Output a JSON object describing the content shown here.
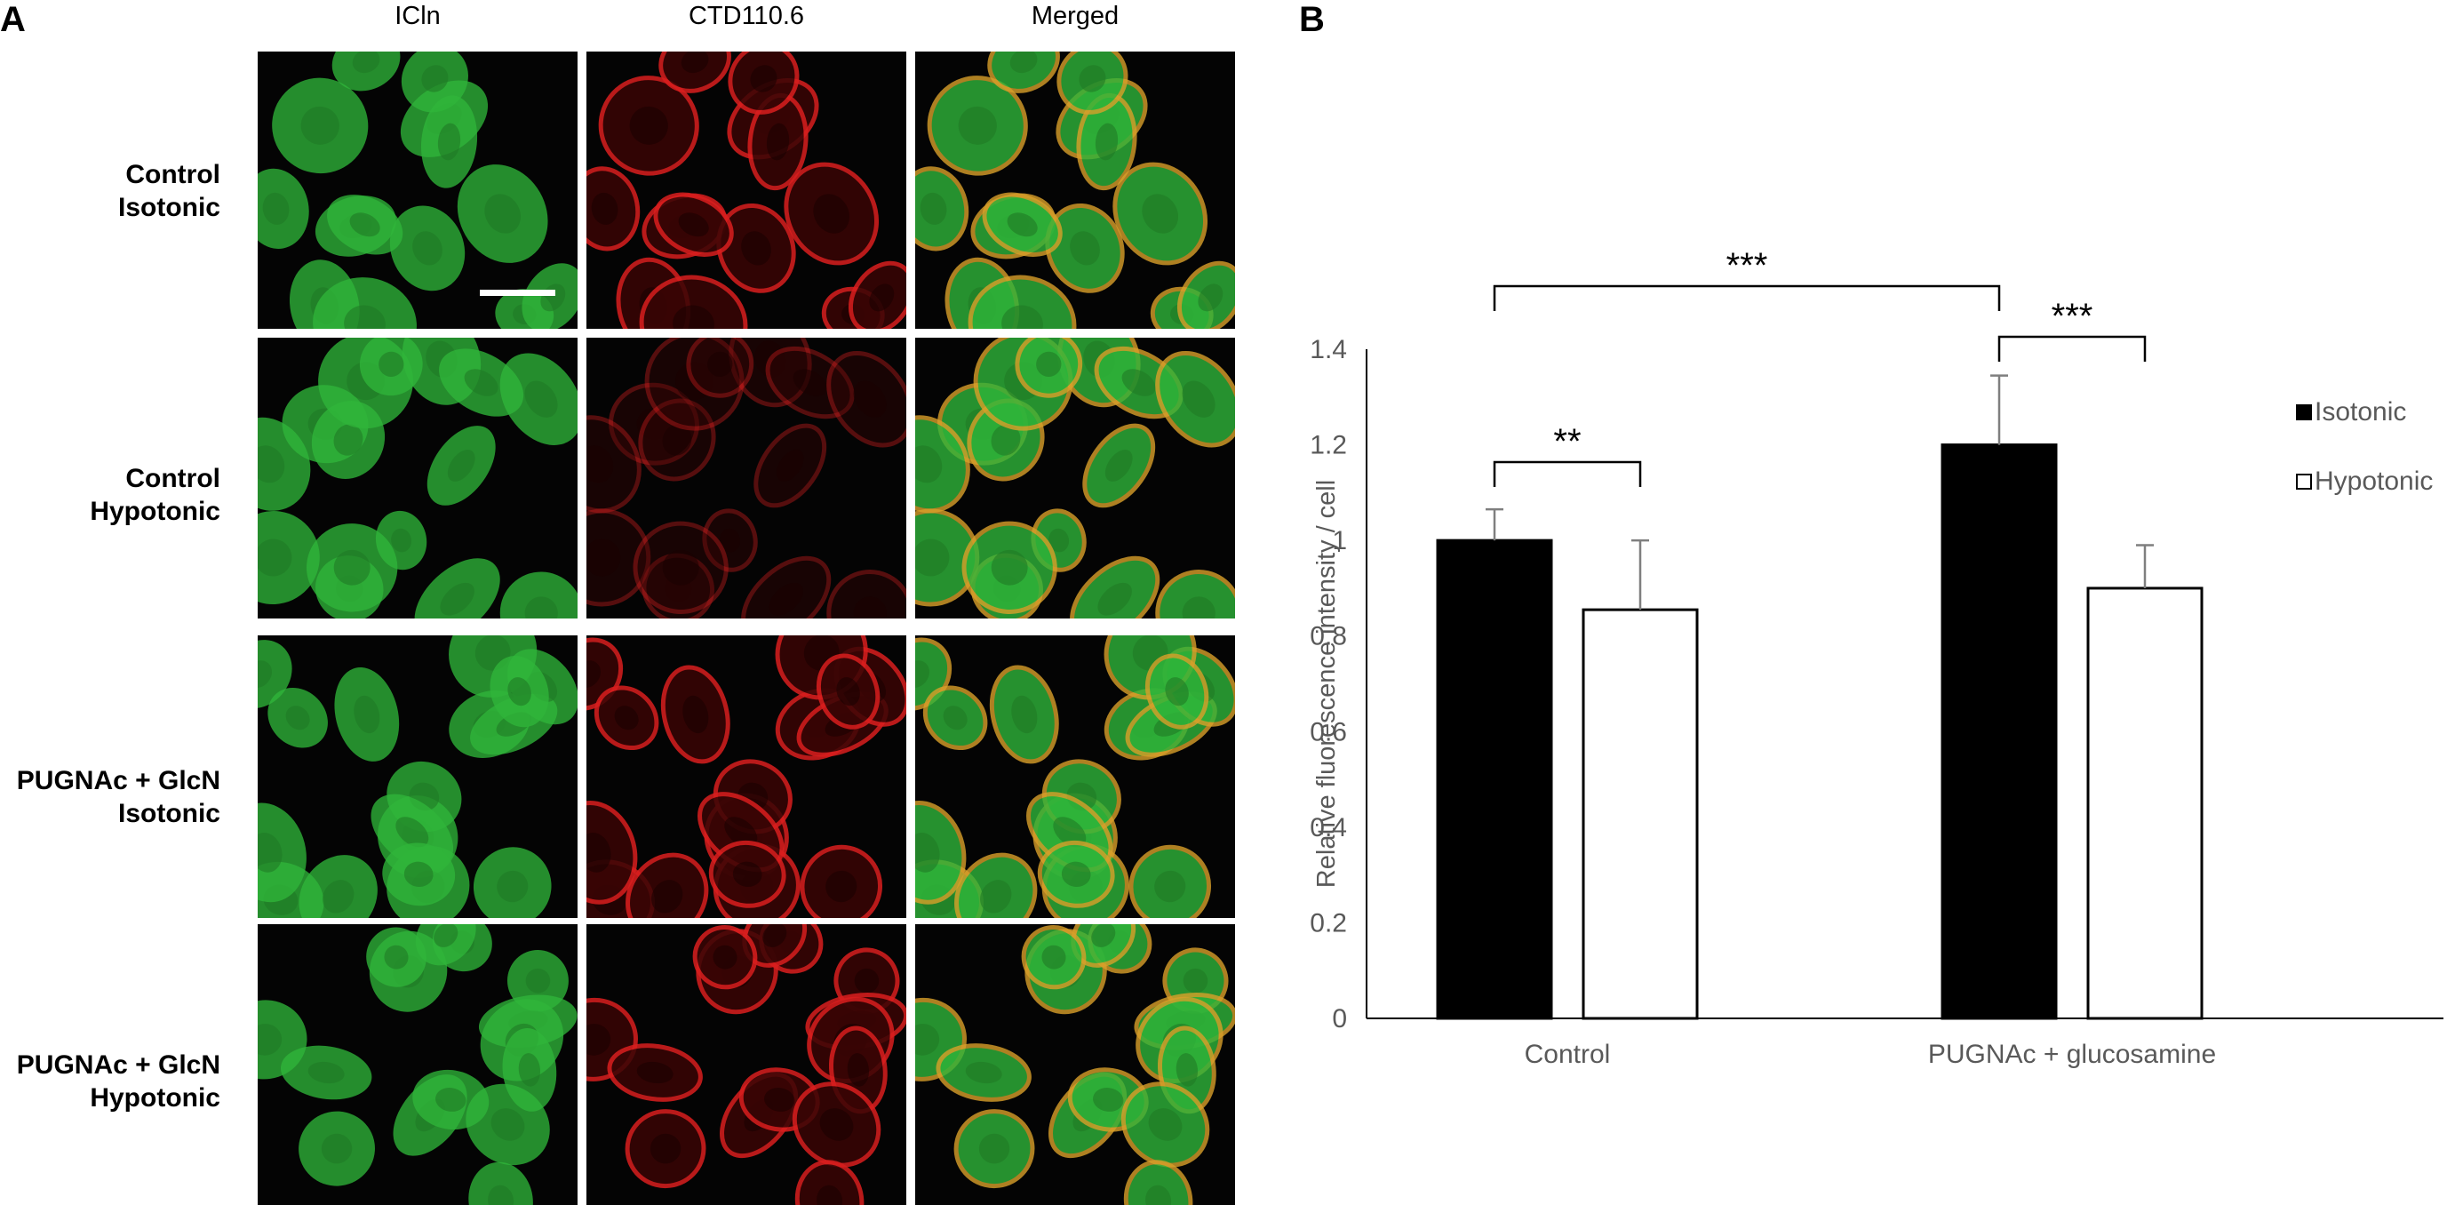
{
  "panels": {
    "a_label": "A",
    "b_label": "B"
  },
  "microscopy": {
    "columns": [
      "ICln",
      "CTD110.6",
      "Merged"
    ],
    "rows": [
      {
        "line1": "Control",
        "line2": "Isotonic"
      },
      {
        "line1": "Control",
        "line2": "Hypotonic"
      },
      {
        "line1": "PUGNAc + GlcN",
        "line2": "Isotonic"
      },
      {
        "line1": "PUGNAc + GlcN",
        "line2": "Hypotonic"
      }
    ],
    "colors": {
      "icln": "#2fb53a",
      "ctd": "#d91e1e",
      "merged_rim": "#d9a02a"
    }
  },
  "chart_data": {
    "type": "bar",
    "categories": [
      "Control",
      "PUGNAc + glucosamine"
    ],
    "series": [
      {
        "name": "Isotonic",
        "values": [
          1.0,
          1.2
        ],
        "errors": [
          0.065,
          0.145
        ],
        "color": "#000000"
      },
      {
        "name": "Hypotonic",
        "values": [
          0.855,
          0.9
        ],
        "errors": [
          0.145,
          0.09
        ],
        "color": "#ffffff"
      }
    ],
    "ylabel": "Relative fluorescence intensity / cell",
    "xlabel": "",
    "ylim": [
      0,
      1.4
    ],
    "yticks": [
      "0",
      "0.2",
      "0.4",
      "0.6",
      "0.8",
      "1",
      "1.2",
      "1.4"
    ],
    "legend_position": "right",
    "significance": [
      {
        "label": "**",
        "between": "Control Isotonic vs Control Hypotonic"
      },
      {
        "label": "***",
        "between": "PUGNAc Isotonic vs PUGNAc Hypotonic"
      },
      {
        "label": "***",
        "between": "Control Isotonic vs PUGNAc Isotonic"
      }
    ]
  }
}
